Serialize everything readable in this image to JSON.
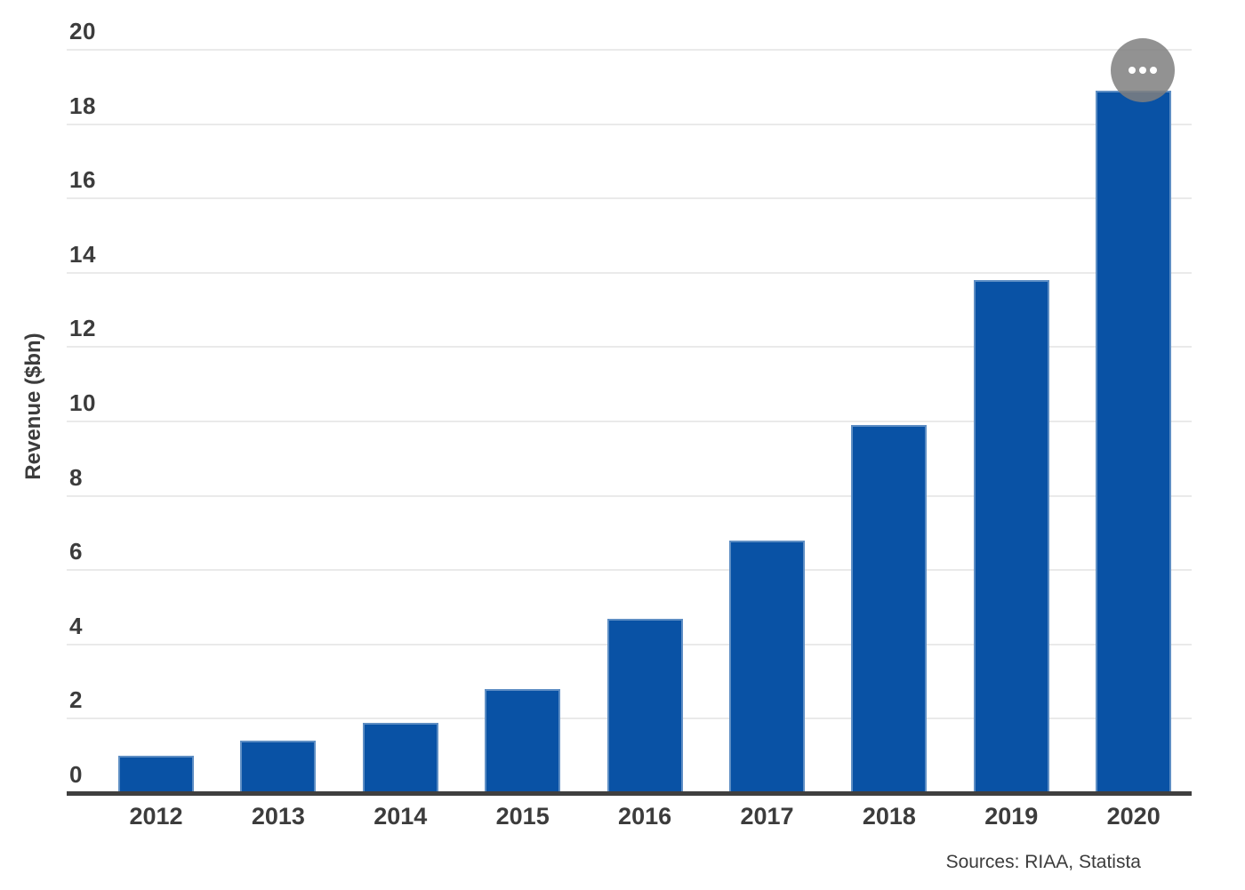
{
  "chart_data": {
    "type": "bar",
    "categories": [
      "2012",
      "2013",
      "2014",
      "2015",
      "2016",
      "2017",
      "2018",
      "2019",
      "2020"
    ],
    "values": [
      1.0,
      1.4,
      1.9,
      2.8,
      4.7,
      6.8,
      9.9,
      13.8,
      18.9
    ],
    "title": "",
    "xlabel": "",
    "ylabel": "Revenue ($bn)",
    "ylim": [
      0,
      20
    ],
    "yticks": [
      0,
      2,
      4,
      6,
      8,
      10,
      12,
      14,
      16,
      18,
      20
    ],
    "grid": "horizontal-light",
    "legend": "none",
    "source_note": "Sources: RIAA, Statista"
  },
  "colors": {
    "bar": "#0952a5",
    "gridline": "#eaeaea",
    "axis": "#3f3f3f",
    "text": "#3c3c3c",
    "menu_button": "rgba(127,127,127,0.85)",
    "menu_dots": "#ffffff",
    "background": "#ffffff"
  },
  "menu": {
    "icon": "ellipsis-icon"
  }
}
